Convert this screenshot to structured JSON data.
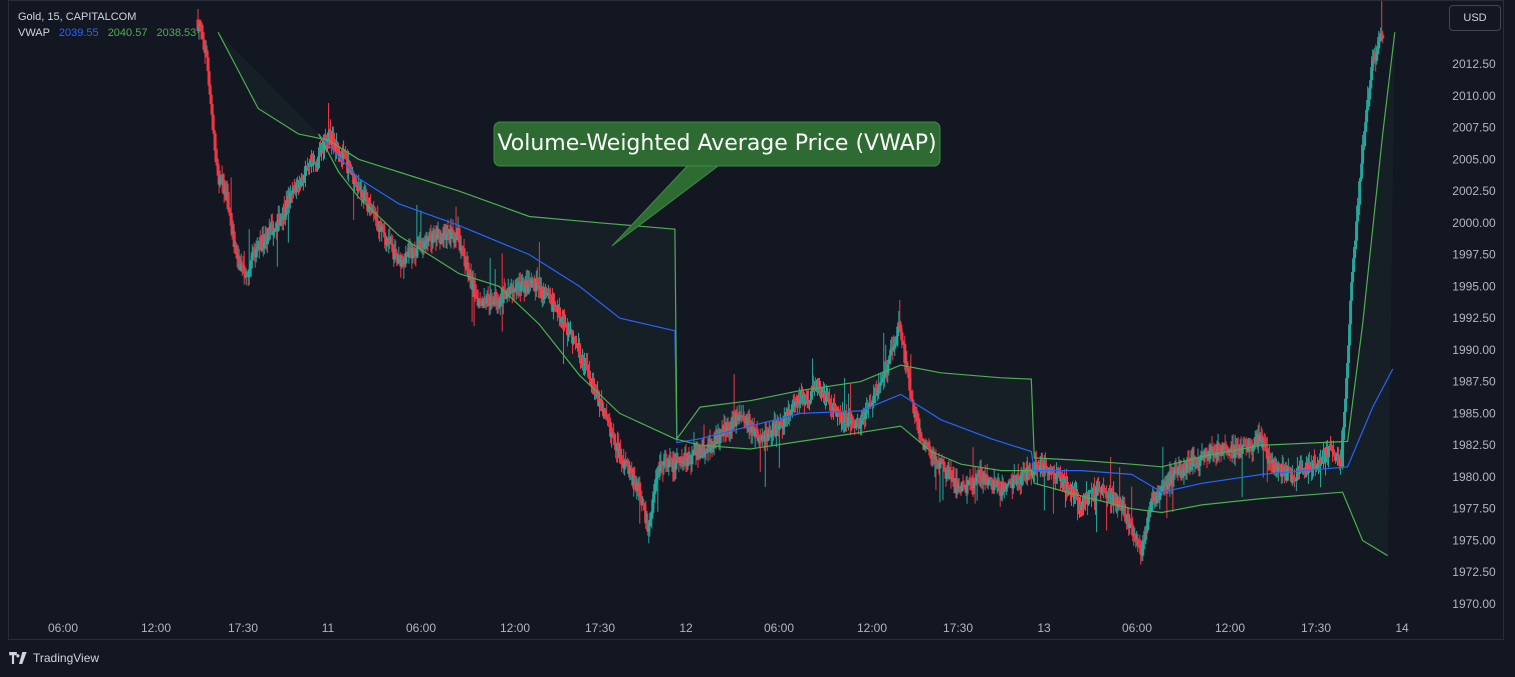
{
  "legend": {
    "symbol": "Gold, 15, CAPITALCOM",
    "indicator": "VWAP",
    "vwap_value": "2039.55",
    "upper_value": "2040.57",
    "lower_value": "2038.53"
  },
  "currency_button": "USD",
  "annotation": "Volume-Weighted Average Price (VWAP)",
  "brand": "TradingView",
  "colors": {
    "background": "#131722",
    "up": "#26a69a",
    "down": "#f23645",
    "vwap": "#2962ff",
    "bands": "#4caf50",
    "callout": "#2e6b33"
  },
  "chart_data": {
    "type": "candlestick",
    "symbol": "Gold",
    "interval": "15",
    "exchange": "CAPITALCOM",
    "y_axis": {
      "ticks": [
        "2012.50",
        "2010.00",
        "2007.50",
        "2005.00",
        "2002.50",
        "2000.00",
        "1997.50",
        "1995.00",
        "1992.50",
        "1990.00",
        "1987.50",
        "1985.00",
        "1982.50",
        "1980.00",
        "1977.50",
        "1975.00",
        "1972.50",
        "1970.00"
      ],
      "range": [
        1969,
        2015
      ]
    },
    "x_axis": {
      "ticks": [
        "06:00",
        "12:00",
        "17:30",
        "11",
        "06:00",
        "12:00",
        "17:30",
        "12",
        "06:00",
        "12:00",
        "17:30",
        "13",
        "06:00",
        "12:00",
        "17:30",
        "14"
      ]
    },
    "price_path": [
      [
        0,
        2016
      ],
      [
        10,
        2013
      ],
      [
        20,
        2004
      ],
      [
        30,
        2002
      ],
      [
        40,
        1997
      ],
      [
        50,
        1996
      ],
      [
        60,
        1998
      ],
      [
        80,
        2000
      ],
      [
        100,
        2003
      ],
      [
        120,
        2005
      ],
      [
        130,
        2007
      ],
      [
        140,
        2006
      ],
      [
        160,
        2003
      ],
      [
        180,
        2000
      ],
      [
        200,
        1997
      ],
      [
        220,
        1998
      ],
      [
        240,
        1999
      ],
      [
        260,
        1999
      ],
      [
        270,
        1996
      ],
      [
        280,
        1994
      ],
      [
        300,
        1994
      ],
      [
        320,
        1995
      ],
      [
        340,
        1995
      ],
      [
        360,
        1993
      ],
      [
        380,
        1990
      ],
      [
        400,
        1986
      ],
      [
        420,
        1982
      ],
      [
        440,
        1979
      ],
      [
        450,
        1976
      ],
      [
        460,
        1981
      ],
      [
        480,
        1981
      ],
      [
        500,
        1982
      ],
      [
        520,
        1983
      ],
      [
        540,
        1985
      ],
      [
        560,
        1983
      ],
      [
        580,
        1984
      ],
      [
        600,
        1986
      ],
      [
        620,
        1987
      ],
      [
        640,
        1985
      ],
      [
        660,
        1984
      ],
      [
        680,
        1987
      ],
      [
        700,
        1992
      ],
      [
        710,
        1987
      ],
      [
        720,
        1983
      ],
      [
        740,
        1981
      ],
      [
        760,
        1979
      ],
      [
        780,
        1980
      ],
      [
        800,
        1979
      ],
      [
        820,
        1980
      ],
      [
        840,
        1981
      ],
      [
        860,
        1980
      ],
      [
        880,
        1978
      ],
      [
        900,
        1979
      ],
      [
        920,
        1978
      ],
      [
        940,
        1974
      ],
      [
        950,
        1978
      ],
      [
        970,
        1980
      ],
      [
        990,
        1981
      ],
      [
        1010,
        1982
      ],
      [
        1040,
        1982
      ],
      [
        1060,
        1983
      ],
      [
        1070,
        1981
      ],
      [
        1090,
        1980
      ],
      [
        1110,
        1981
      ],
      [
        1130,
        1982
      ],
      [
        1140,
        1981
      ],
      [
        1150,
        1995
      ],
      [
        1160,
        2005
      ],
      [
        1170,
        2012
      ],
      [
        1180,
        2015
      ]
    ],
    "series": [
      {
        "name": "VWAP",
        "points": [
          [
            120,
            2007
          ],
          [
            160,
            2003.5
          ],
          [
            200,
            2001.5
          ],
          [
            260,
            1999.8
          ],
          [
            330,
            1997.5
          ],
          [
            380,
            1995
          ],
          [
            420,
            1992.5
          ],
          [
            475,
            1991.5
          ],
          [
            477,
            1982.7
          ],
          [
            500,
            1983
          ],
          [
            550,
            1984
          ],
          [
            600,
            1985
          ],
          [
            660,
            1985.2
          ],
          [
            700,
            1986.5
          ],
          [
            740,
            1984.5
          ],
          [
            790,
            1983
          ],
          [
            830,
            1982
          ],
          [
            833,
            1980.5
          ],
          [
            880,
            1980.5
          ],
          [
            930,
            1980.2
          ],
          [
            960,
            1978.8
          ],
          [
            1000,
            1979.5
          ],
          [
            1060,
            1980.2
          ],
          [
            1145,
            1980.8
          ],
          [
            1170,
            1985.5
          ],
          [
            1190,
            1988.5
          ]
        ]
      },
      {
        "name": "VWAP upper band",
        "points": [
          [
            20,
            2015
          ],
          [
            40,
            2012
          ],
          [
            60,
            2009
          ],
          [
            100,
            2007
          ],
          [
            130,
            2006.5
          ],
          [
            160,
            2005
          ],
          [
            200,
            2004
          ],
          [
            260,
            2002.5
          ],
          [
            330,
            2000.5
          ],
          [
            400,
            2000
          ],
          [
            475,
            1999.5
          ],
          [
            477,
            1983
          ],
          [
            500,
            1985.5
          ],
          [
            550,
            1986
          ],
          [
            600,
            1986.8
          ],
          [
            660,
            1987.5
          ],
          [
            700,
            1988.8
          ],
          [
            740,
            1988.2
          ],
          [
            800,
            1987.8
          ],
          [
            830,
            1987.7
          ],
          [
            833,
            1981.5
          ],
          [
            880,
            1981.3
          ],
          [
            930,
            1981
          ],
          [
            960,
            1980.8
          ],
          [
            1000,
            1981.6
          ],
          [
            1060,
            1982.5
          ],
          [
            1145,
            1982.8
          ],
          [
            1160,
            1992
          ],
          [
            1180,
            2007
          ],
          [
            1192,
            2015
          ]
        ]
      },
      {
        "name": "VWAP lower band",
        "points": [
          [
            120,
            2007
          ],
          [
            140,
            2004
          ],
          [
            160,
            2002
          ],
          [
            200,
            1999
          ],
          [
            260,
            1996
          ],
          [
            300,
            1995
          ],
          [
            340,
            1992
          ],
          [
            380,
            1988
          ],
          [
            420,
            1985
          ],
          [
            475,
            1983
          ],
          [
            500,
            1982.5
          ],
          [
            550,
            1982.2
          ],
          [
            600,
            1982.8
          ],
          [
            660,
            1983.5
          ],
          [
            700,
            1984
          ],
          [
            730,
            1982
          ],
          [
            760,
            1981
          ],
          [
            800,
            1980.5
          ],
          [
            830,
            1980.5
          ],
          [
            833,
            1979.5
          ],
          [
            880,
            1978.5
          ],
          [
            930,
            1977.5
          ],
          [
            960,
            1977.2
          ],
          [
            1000,
            1977.8
          ],
          [
            1060,
            1978.3
          ],
          [
            1140,
            1978.8
          ],
          [
            1160,
            1975
          ],
          [
            1185,
            1973.8
          ]
        ]
      }
    ]
  }
}
